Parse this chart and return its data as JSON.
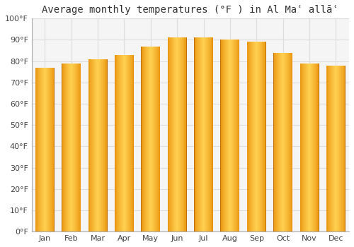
{
  "title": "Average monthly temperatures (°F ) in Al Maʿ allāʿ",
  "months": [
    "Jan",
    "Feb",
    "Mar",
    "Apr",
    "May",
    "Jun",
    "Jul",
    "Aug",
    "Sep",
    "Oct",
    "Nov",
    "Dec"
  ],
  "values": [
    77,
    79,
    81,
    83,
    87,
    91,
    91,
    90,
    89,
    84,
    79,
    78
  ],
  "bar_color_edge": "#E8900A",
  "bar_color_center": "#FFD050",
  "background_color": "#ffffff",
  "plot_bg_color": "#f5f5f5",
  "ylim": [
    0,
    100
  ],
  "yticks": [
    0,
    10,
    20,
    30,
    40,
    50,
    60,
    70,
    80,
    90,
    100
  ],
  "ytick_labels": [
    "0°F",
    "10°F",
    "20°F",
    "30°F",
    "40°F",
    "50°F",
    "60°F",
    "70°F",
    "80°F",
    "90°F",
    "100°F"
  ],
  "title_fontsize": 10,
  "tick_fontsize": 8,
  "grid_color": "#dddddd"
}
